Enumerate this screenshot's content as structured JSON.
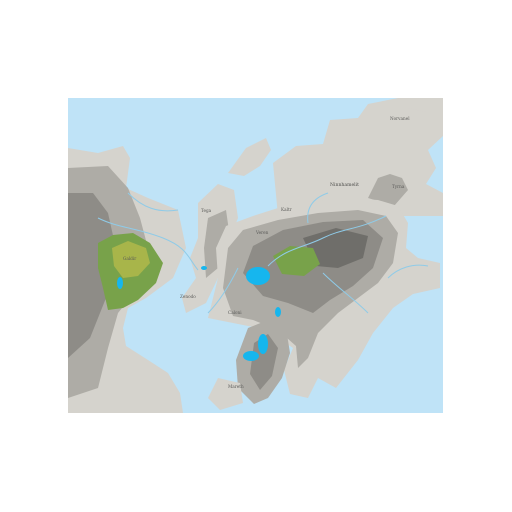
{
  "colors": {
    "ocean": "#bfe3f7",
    "land_low": "#d5d3cd",
    "land_mid": "#aeaca6",
    "land_high": "#8e8c87",
    "land_peak": "#6f6e6a",
    "forest": "#78a24a",
    "grassland": "#a8b54a",
    "lake": "#16b6ee",
    "river": "#8fcbe8"
  },
  "labels": [
    {
      "id": "north-coast-settlement",
      "text": "Norvanel"
    },
    {
      "id": "northern-plains",
      "text": "Ninnhamelit"
    },
    {
      "id": "eastern-settlement",
      "text": "Tyrna"
    },
    {
      "id": "west-peninsula-settlement",
      "text": "Tega"
    },
    {
      "id": "central-north-settlement",
      "text": "Kaltr"
    },
    {
      "id": "central-settlement",
      "text": "Veren"
    },
    {
      "id": "western-forest-town",
      "text": "Galdir"
    },
    {
      "id": "isthmus-town",
      "text": "Zenodo"
    },
    {
      "id": "southern-town",
      "text": "Caloni"
    },
    {
      "id": "southern-peninsula-town",
      "text": "Mareth"
    }
  ]
}
